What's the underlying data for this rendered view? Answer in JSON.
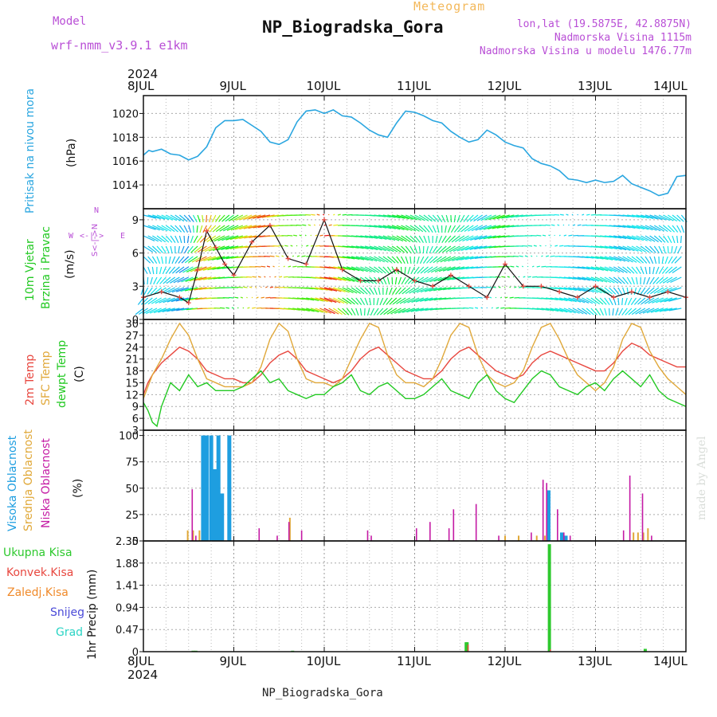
{
  "header": {
    "model_label": "Model",
    "model_name": "wrf-nmm_v3.9.1 e1km",
    "meteogram_label": "Meteogram",
    "station": "NP_Biogradska_Gora",
    "coords": "lon,lat (19.5875E, 42.8875N)",
    "elevation": "Nadmorska Visina 1115m",
    "model_elevation": "Nadmorska Visina u modelu 1476.77m"
  },
  "axis": {
    "year": "2024",
    "days": [
      "8JUL",
      "9JUL",
      "10JUL",
      "11JUL",
      "12JUL",
      "13JUL",
      "14JUL"
    ]
  },
  "panels": {
    "pressure": {
      "label": "Pritisak na nivou mora",
      "unit": "(hPa)"
    },
    "wind": {
      "label1": "10m Vjetar",
      "label2": "Brzina i Pravac",
      "unit": "(m/s)",
      "compass_n": "N",
      "compass_s": "S",
      "compass_e": "E",
      "compass_w": "W",
      "compass_vert": "S<-|->N",
      "compass_horiz": "<-|->"
    },
    "temp": {
      "label_2m": "2m Temp",
      "label_sfc": "SFC Temp",
      "label_dewpt": "dewpt Temp",
      "unit": "(C)"
    },
    "cloud": {
      "label_high": "Visoka Oblacnost",
      "label_mid": "Srednja Oblacnost",
      "label_low": "Niska Oblacnost",
      "unit": "(%)"
    },
    "precip": {
      "unit": "1hr Precip (mm)",
      "legend": [
        "Ukupna Kisa",
        "Konvek.Kisa",
        "Zaledj.Kisa",
        "Snijeg",
        "Grad"
      ]
    }
  },
  "colors": {
    "pressure": "#2aa6e0",
    "temp2m": "#e8473f",
    "sfc": "#e0a83a",
    "dewpt": "#22c922",
    "high_cloud": "#1e9ee0",
    "mid_cloud": "#e0a838",
    "low_cloud": "#c41aa4",
    "total_rain": "#2ec92e",
    "conv_rain": "#e8473f",
    "freezing": "#f08a2a",
    "snow": "#4a4ad8",
    "hail": "#2ad4c4"
  },
  "footer": {
    "station": "NP_Biogradska_Gora",
    "credit": "made by Angel"
  },
  "chart_data": [
    {
      "type": "line",
      "title": "Pritisak na nivou mora",
      "ylabel": "(hPa)",
      "ylim": [
        1012,
        1021.5
      ],
      "yticks": [
        1014,
        1016,
        1018,
        1020
      ],
      "grid": true,
      "series": [
        {
          "name": "Pritisak na nivou mora",
          "x": [
            0,
            0.06,
            0.1,
            0.2,
            0.3,
            0.4,
            0.5,
            0.6,
            0.7,
            0.8,
            0.9,
            1.0,
            1.1,
            1.2,
            1.3,
            1.4,
            1.5,
            1.6,
            1.7,
            1.8,
            1.9,
            2.0,
            2.1,
            2.2,
            2.3,
            2.4,
            2.5,
            2.6,
            2.7,
            2.8,
            2.9,
            3.0,
            3.1,
            3.2,
            3.3,
            3.4,
            3.5,
            3.6,
            3.7,
            3.8,
            3.9,
            4.0,
            4.1,
            4.2,
            4.3,
            4.4,
            4.5,
            4.6,
            4.7,
            4.8,
            4.9,
            5.0,
            5.1,
            5.2,
            5.3,
            5.4,
            5.5,
            5.6,
            5.7,
            5.8,
            5.9,
            6.0
          ],
          "y": [
            1016.5,
            1016.9,
            1016.8,
            1017.0,
            1016.6,
            1016.5,
            1016.1,
            1016.4,
            1017.2,
            1018.8,
            1019.4,
            1019.4,
            1019.5,
            1019.0,
            1018.5,
            1017.6,
            1017.4,
            1017.8,
            1019.3,
            1020.2,
            1020.3,
            1020.0,
            1020.3,
            1019.8,
            1019.7,
            1019.2,
            1018.6,
            1018.2,
            1018.0,
            1019.2,
            1020.2,
            1020.1,
            1019.8,
            1019.4,
            1019.2,
            1018.5,
            1018.0,
            1017.6,
            1017.8,
            1018.6,
            1018.2,
            1017.6,
            1017.3,
            1017.1,
            1016.2,
            1015.8,
            1015.6,
            1015.2,
            1014.5,
            1014.4,
            1014.2,
            1014.4,
            1014.2,
            1014.3,
            1014.8,
            1014.1,
            1013.8,
            1013.5,
            1013.1,
            1013.3,
            1014.7,
            1014.8
          ]
        }
      ]
    },
    {
      "type": "line",
      "title": "10m Vjetar Brzina i Pravac",
      "ylabel": "(m/s)",
      "ylim": [
        0,
        10
      ],
      "yticks": [
        0,
        3,
        6,
        9
      ],
      "grid": true,
      "series": [
        {
          "name": "wind speed",
          "x": [
            0,
            0.2,
            0.4,
            0.5,
            0.6,
            0.7,
            0.8,
            0.9,
            1.0,
            1.2,
            1.4,
            1.6,
            1.8,
            2.0,
            2.2,
            2.4,
            2.6,
            2.8,
            3.0,
            3.2,
            3.4,
            3.6,
            3.8,
            4.0,
            4.2,
            4.4,
            4.6,
            4.8,
            5.0,
            5.2,
            5.4,
            5.6,
            5.8,
            6.0
          ],
          "y": [
            2.0,
            2.5,
            2.0,
            1.5,
            4.5,
            8.0,
            6.5,
            5.0,
            4.0,
            7.0,
            8.5,
            5.5,
            5.0,
            9.0,
            4.5,
            3.5,
            3.5,
            4.5,
            3.5,
            3.0,
            4.0,
            3.0,
            2.0,
            5.0,
            3.0,
            3.0,
            2.5,
            2.0,
            3.0,
            2.0,
            2.5,
            2.0,
            2.5,
            2.0
          ]
        }
      ]
    },
    {
      "type": "line",
      "title": "2m Temp / SFC Temp / dewpt Temp",
      "ylabel": "(C)",
      "ylim": [
        3,
        31
      ],
      "yticks": [
        3,
        6,
        9,
        12,
        15,
        18,
        21,
        24,
        27,
        30
      ],
      "grid": true,
      "series": [
        {
          "name": "2m Temp",
          "x": [
            0,
            0.05,
            0.1,
            0.2,
            0.3,
            0.4,
            0.5,
            0.6,
            0.7,
            0.8,
            0.9,
            1.0,
            1.1,
            1.2,
            1.3,
            1.4,
            1.5,
            1.6,
            1.7,
            1.8,
            1.9,
            2.0,
            2.1,
            2.2,
            2.3,
            2.4,
            2.5,
            2.6,
            2.7,
            2.8,
            2.9,
            3.0,
            3.1,
            3.2,
            3.3,
            3.4,
            3.5,
            3.6,
            3.7,
            3.8,
            3.9,
            4.0,
            4.1,
            4.2,
            4.3,
            4.4,
            4.5,
            4.6,
            4.7,
            4.8,
            4.9,
            5.0,
            5.1,
            5.2,
            5.3,
            5.4,
            5.5,
            5.6,
            5.7,
            5.8,
            5.9,
            6.0
          ],
          "y": [
            12,
            15,
            17,
            20,
            22,
            24,
            23,
            21,
            18,
            17,
            16,
            16,
            15,
            15,
            17,
            20,
            22,
            23,
            21,
            18,
            17,
            16,
            15,
            16,
            18,
            21,
            23,
            24,
            22,
            20,
            18,
            17,
            16,
            16,
            18,
            21,
            23,
            24,
            22,
            20,
            18,
            17,
            16,
            17,
            20,
            22,
            23,
            22,
            21,
            20,
            19,
            18,
            18,
            20,
            23,
            25,
            24,
            22,
            21,
            20,
            19,
            19
          ]
        },
        {
          "name": "SFC Temp",
          "x": [
            0,
            0.05,
            0.1,
            0.2,
            0.3,
            0.4,
            0.5,
            0.6,
            0.7,
            0.8,
            0.9,
            1.0,
            1.1,
            1.2,
            1.3,
            1.4,
            1.5,
            1.6,
            1.7,
            1.8,
            1.9,
            2.0,
            2.1,
            2.2,
            2.3,
            2.4,
            2.5,
            2.6,
            2.7,
            2.8,
            2.9,
            3.0,
            3.1,
            3.2,
            3.3,
            3.4,
            3.5,
            3.6,
            3.7,
            3.8,
            3.9,
            4.0,
            4.1,
            4.2,
            4.3,
            4.4,
            4.5,
            4.6,
            4.7,
            4.8,
            4.9,
            5.0,
            5.1,
            5.2,
            5.3,
            5.4,
            5.5,
            5.6,
            5.7,
            5.8,
            5.9,
            6.0
          ],
          "y": [
            11,
            14,
            17,
            21,
            26,
            30,
            27,
            21,
            16,
            15,
            14,
            14,
            14,
            15,
            19,
            26,
            30,
            28,
            21,
            16,
            15,
            15,
            14,
            16,
            21,
            26,
            30,
            29,
            22,
            17,
            15,
            15,
            14,
            16,
            21,
            27,
            30,
            29,
            22,
            17,
            15,
            14,
            15,
            18,
            24,
            29,
            30,
            26,
            21,
            17,
            15,
            13,
            15,
            19,
            26,
            30,
            29,
            23,
            19,
            16,
            14,
            12
          ]
        },
        {
          "name": "dewpt Temp",
          "x": [
            0,
            0.05,
            0.1,
            0.15,
            0.2,
            0.3,
            0.4,
            0.5,
            0.6,
            0.7,
            0.8,
            0.9,
            1.0,
            1.1,
            1.2,
            1.3,
            1.4,
            1.5,
            1.6,
            1.7,
            1.8,
            1.9,
            2.0,
            2.1,
            2.2,
            2.3,
            2.4,
            2.5,
            2.6,
            2.7,
            2.8,
            2.9,
            3.0,
            3.1,
            3.2,
            3.3,
            3.4,
            3.5,
            3.6,
            3.7,
            3.8,
            3.9,
            4.0,
            4.1,
            4.2,
            4.3,
            4.4,
            4.5,
            4.6,
            4.7,
            4.8,
            4.9,
            5.0,
            5.1,
            5.2,
            5.3,
            5.4,
            5.5,
            5.6,
            5.7,
            5.8,
            5.9,
            6.0
          ],
          "y": [
            10,
            8,
            5,
            4,
            9,
            15,
            13,
            17,
            14,
            15,
            13,
            13,
            13,
            14,
            16,
            18,
            15,
            16,
            13,
            12,
            11,
            12,
            12,
            14,
            15,
            17,
            13,
            12,
            14,
            15,
            13,
            11,
            11,
            12,
            14,
            16,
            13,
            12,
            11,
            15,
            17,
            13,
            11,
            10,
            13,
            16,
            18,
            17,
            14,
            13,
            12,
            14,
            15,
            13,
            16,
            18,
            16,
            14,
            17,
            13,
            11,
            10,
            9
          ]
        }
      ]
    },
    {
      "type": "bar",
      "title": "Visoka / Srednja / Niska Oblacnost",
      "ylabel": "(%)",
      "ylim": [
        0,
        105
      ],
      "yticks": [
        0,
        25,
        50,
        75,
        100
      ],
      "grid": true,
      "series": [
        {
          "name": "Visoka Oblacnost",
          "x": [
            0.66,
            0.7,
            0.75,
            0.79,
            0.83,
            0.87,
            0.95,
            4.48,
            4.63,
            4.67
          ],
          "values": [
            100,
            100,
            100,
            68,
            100,
            45,
            100,
            48,
            8,
            5
          ]
        },
        {
          "name": "Srednja Oblacnost",
          "x": [
            0.49,
            0.55,
            0.62,
            1.62,
            4.0,
            4.15,
            4.35,
            4.44,
            5.42,
            5.47,
            5.53,
            5.58
          ],
          "values": [
            10,
            10,
            10,
            22,
            5,
            5,
            5,
            5,
            8,
            8,
            8,
            12
          ]
        },
        {
          "name": "Niska Oblacnost",
          "x": [
            0.54,
            0.58,
            1.28,
            1.48,
            1.61,
            1.75,
            2.48,
            2.52,
            3.02,
            3.17,
            3.38,
            3.43,
            3.68,
            3.93,
            4.29,
            4.42,
            4.46,
            4.58,
            4.65,
            4.72,
            5.31,
            5.38,
            5.52,
            5.62
          ],
          "values": [
            49,
            5,
            12,
            5,
            18,
            10,
            10,
            5,
            12,
            18,
            12,
            30,
            35,
            5,
            8,
            58,
            55,
            30,
            8,
            5,
            10,
            62,
            45,
            5
          ]
        }
      ]
    },
    {
      "type": "bar",
      "title": "1hr Precip",
      "ylabel": "1hr Precip (mm)",
      "ylim": [
        0,
        2.35
      ],
      "yticks": [
        0,
        0.47,
        0.94,
        1.41,
        1.88,
        2.35
      ],
      "grid": true,
      "series": [
        {
          "name": "Ukupna Kisa",
          "x": [
            0.55,
            0.58,
            1.65,
            3.57,
            3.58,
            4.49,
            5.55
          ],
          "values": [
            0.02,
            0.02,
            0.02,
            0.2,
            0.2,
            2.28,
            0.06
          ]
        },
        {
          "name": "Konvek.Kisa",
          "x": [
            0.56,
            3.59,
            4.5
          ],
          "values": [
            0.01,
            0.15,
            0.05
          ]
        }
      ]
    }
  ]
}
